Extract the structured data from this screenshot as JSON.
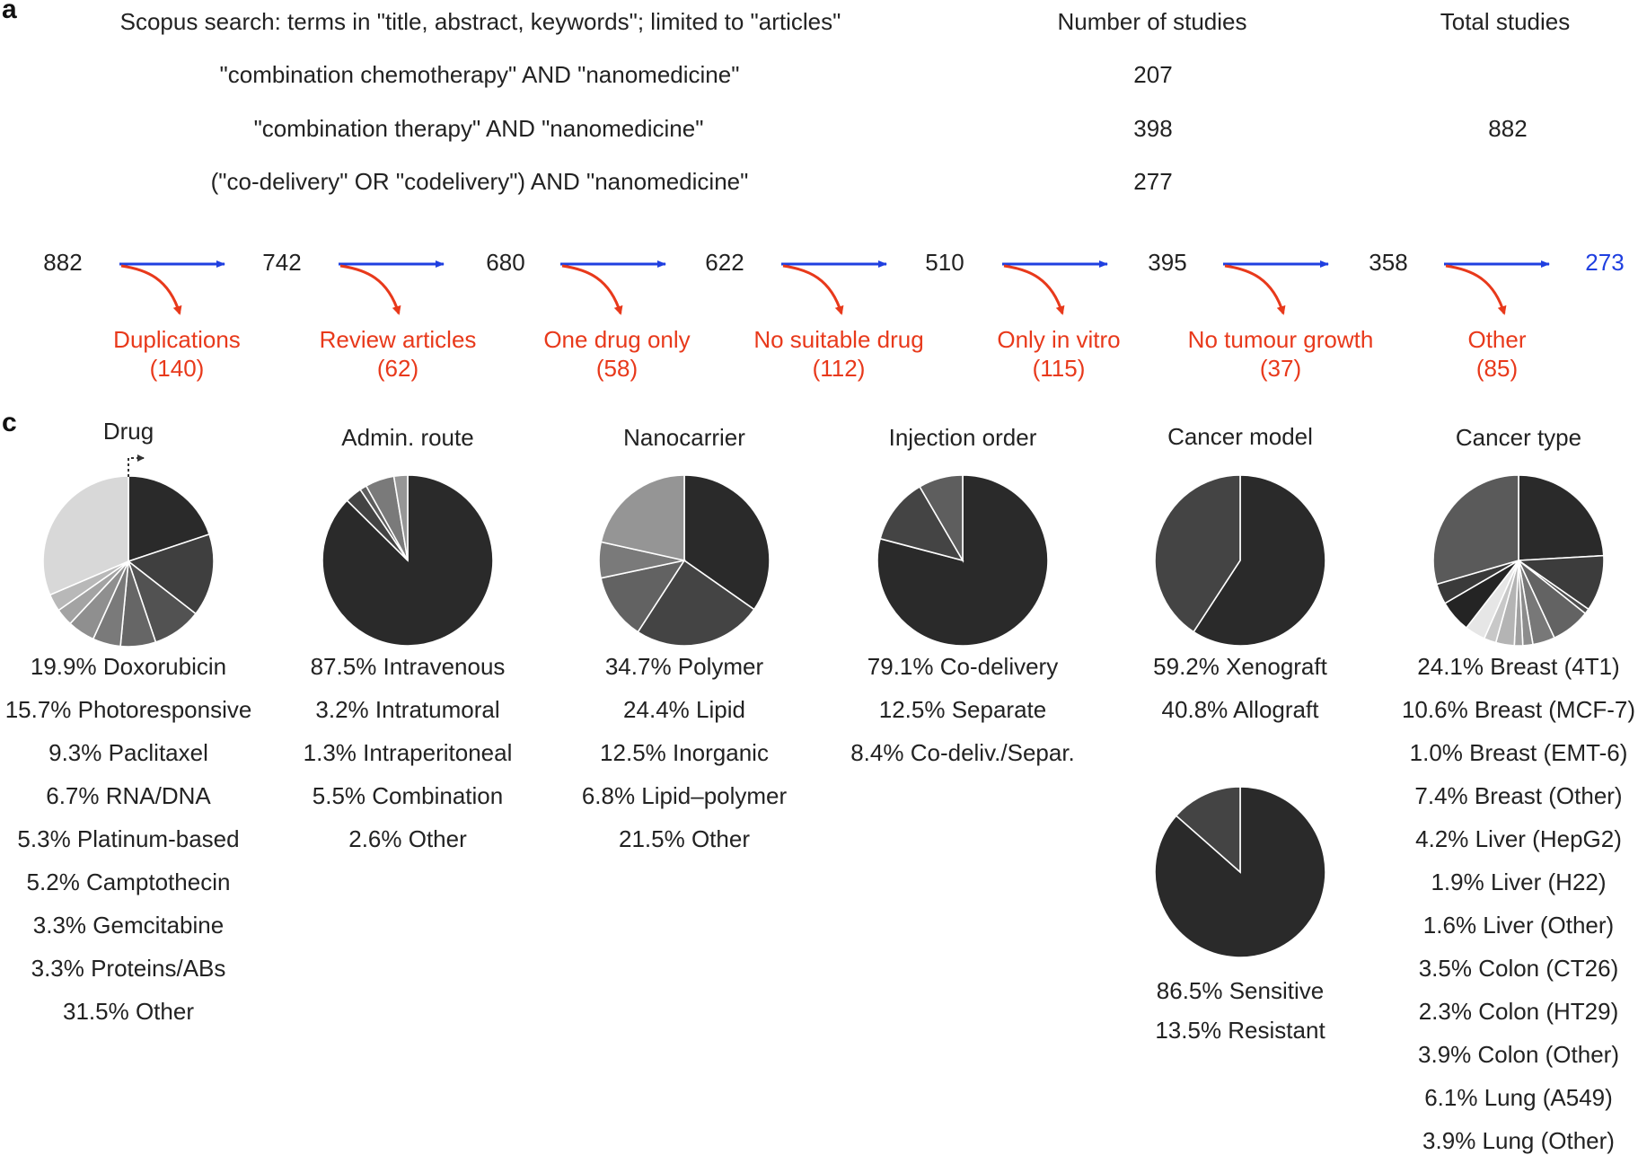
{
  "panels": {
    "a": "a",
    "c": "c"
  },
  "search_table": {
    "header": {
      "query": "Scopus search: terms in \"title, abstract, keywords\"; limited to \"articles\"",
      "number": "Number of studies",
      "total": "Total studies"
    },
    "rows": [
      {
        "query": "\"combination chemotherapy\" AND \"nanomedicine\"",
        "number": "207"
      },
      {
        "query": "\"combination therapy\" AND \"nanomedicine\"",
        "number": "398"
      },
      {
        "query": "(\"co-delivery\" OR \"codelivery\") AND \"nanomedicine\"",
        "number": "277"
      }
    ],
    "total": "882"
  },
  "flow": {
    "counts": [
      "882",
      "742",
      "680",
      "622",
      "510",
      "395",
      "358",
      "273"
    ],
    "exclusions": [
      {
        "label": "Duplications",
        "count": "(140)"
      },
      {
        "label": "Review articles",
        "count": "(62)"
      },
      {
        "label": "One drug only",
        "count": "(58)"
      },
      {
        "label": "No suitable drug",
        "count": "(112)"
      },
      {
        "label": "Only in vitro",
        "count": "(115)"
      },
      {
        "label": "No tumour growth",
        "count": "(37)"
      },
      {
        "label": "Other",
        "count": "(85)"
      }
    ],
    "colors": {
      "arrow": "#1f3fe0",
      "exclusion": "#e8391b",
      "final": "#1f3fe0"
    }
  },
  "chart_data": [
    {
      "type": "pie",
      "title": "Drug",
      "slices": [
        {
          "label": "19.9% Doxorubicin",
          "value": 19.9,
          "color": "#2a2a2a"
        },
        {
          "label": "15.7% Photoresponsive",
          "value": 15.7,
          "color": "#3f3f3f"
        },
        {
          "label": "9.3% Paclitaxel",
          "value": 9.3,
          "color": "#525252"
        },
        {
          "label": "6.7% RNA/DNA",
          "value": 6.7,
          "color": "#666666"
        },
        {
          "label": "5.3% Platinum-based",
          "value": 5.3,
          "color": "#7a7a7a"
        },
        {
          "label": "5.2% Camptothecin",
          "value": 5.2,
          "color": "#8f8f8f"
        },
        {
          "label": "3.3% Gemcitabine",
          "value": 3.3,
          "color": "#a3a3a3"
        },
        {
          "label": "3.3% Proteins/ABs",
          "value": 3.3,
          "color": "#b8b8b8"
        },
        {
          "label": "31.5% Other",
          "value": 31.5,
          "color": "#d8d8d8"
        }
      ]
    },
    {
      "type": "pie",
      "title": "Admin. route",
      "slices": [
        {
          "label": "87.5% Intravenous",
          "value": 87.5,
          "color": "#2a2a2a"
        },
        {
          "label": "3.2% Intratumoral",
          "value": 3.2,
          "color": "#444444"
        },
        {
          "label": "1.3% Intraperitoneal",
          "value": 1.3,
          "color": "#5e5e5e"
        },
        {
          "label": "5.5% Combination",
          "value": 5.5,
          "color": "#7a7a7a"
        },
        {
          "label": "2.6% Other",
          "value": 2.6,
          "color": "#969696"
        }
      ]
    },
    {
      "type": "pie",
      "title": "Nanocarrier",
      "slices": [
        {
          "label": "34.7% Polymer",
          "value": 34.7,
          "color": "#2a2a2a"
        },
        {
          "label": "24.4% Lipid",
          "value": 24.4,
          "color": "#444444"
        },
        {
          "label": "12.5% Inorganic",
          "value": 12.5,
          "color": "#626262"
        },
        {
          "label": "6.8% Lipid–polymer",
          "value": 6.8,
          "color": "#7a7a7a"
        },
        {
          "label": "21.5% Other",
          "value": 21.5,
          "color": "#959595"
        }
      ]
    },
    {
      "type": "pie",
      "title": "Injection order",
      "slices": [
        {
          "label": "79.1% Co-delivery",
          "value": 79.1,
          "color": "#2a2a2a"
        },
        {
          "label": "12.5% Separate",
          "value": 12.5,
          "color": "#444444"
        },
        {
          "label": "8.4% Co-deliv./Separ.",
          "value": 8.4,
          "color": "#5e5e5e"
        }
      ]
    },
    {
      "type": "pie",
      "title": "Cancer model",
      "slices": [
        {
          "label": "59.2% Xenograft",
          "value": 59.2,
          "color": "#2a2a2a"
        },
        {
          "label": "40.8% Allograft",
          "value": 40.8,
          "color": "#444444"
        }
      ]
    },
    {
      "type": "pie",
      "title": "",
      "slices": [
        {
          "label": "86.5% Sensitive",
          "value": 86.5,
          "color": "#2a2a2a"
        },
        {
          "label": "13.5% Resistant",
          "value": 13.5,
          "color": "#444444"
        }
      ]
    },
    {
      "type": "pie",
      "title": "Cancer type",
      "slices": [
        {
          "label": "24.1% Breast (4T1)",
          "value": 24.1,
          "color": "#2a2a2a"
        },
        {
          "label": "10.6% Breast (MCF-7)",
          "value": 10.6,
          "color": "#3c3c3c"
        },
        {
          "label": "1.0% Breast (EMT-6)",
          "value": 1.0,
          "color": "#4e4e4e"
        },
        {
          "label": "7.4% Breast (Other)",
          "value": 7.4,
          "color": "#636363"
        },
        {
          "label": "4.2% Liver (HepG2)",
          "value": 4.2,
          "color": "#787878"
        },
        {
          "label": "1.9% Liver (H22)",
          "value": 1.9,
          "color": "#8c8c8c"
        },
        {
          "label": "1.6% Liver (Other)",
          "value": 1.6,
          "color": "#a0a0a0"
        },
        {
          "label": "3.5% Colon (CT26)",
          "value": 3.5,
          "color": "#b4b4b4"
        },
        {
          "label": "2.3% Colon (HT29)",
          "value": 2.3,
          "color": "#c8c8c8"
        },
        {
          "label": "3.9% Colon (Other)",
          "value": 3.9,
          "color": "#e6e6e6"
        },
        {
          "label": "6.1% Lung (A549)",
          "value": 6.1,
          "color": "#242424"
        },
        {
          "label": "3.9% Lung (Other)",
          "value": 3.9,
          "color": "#3a3a3a"
        },
        {
          "value": 29.5,
          "color": "#5a5a5a"
        }
      ]
    }
  ]
}
